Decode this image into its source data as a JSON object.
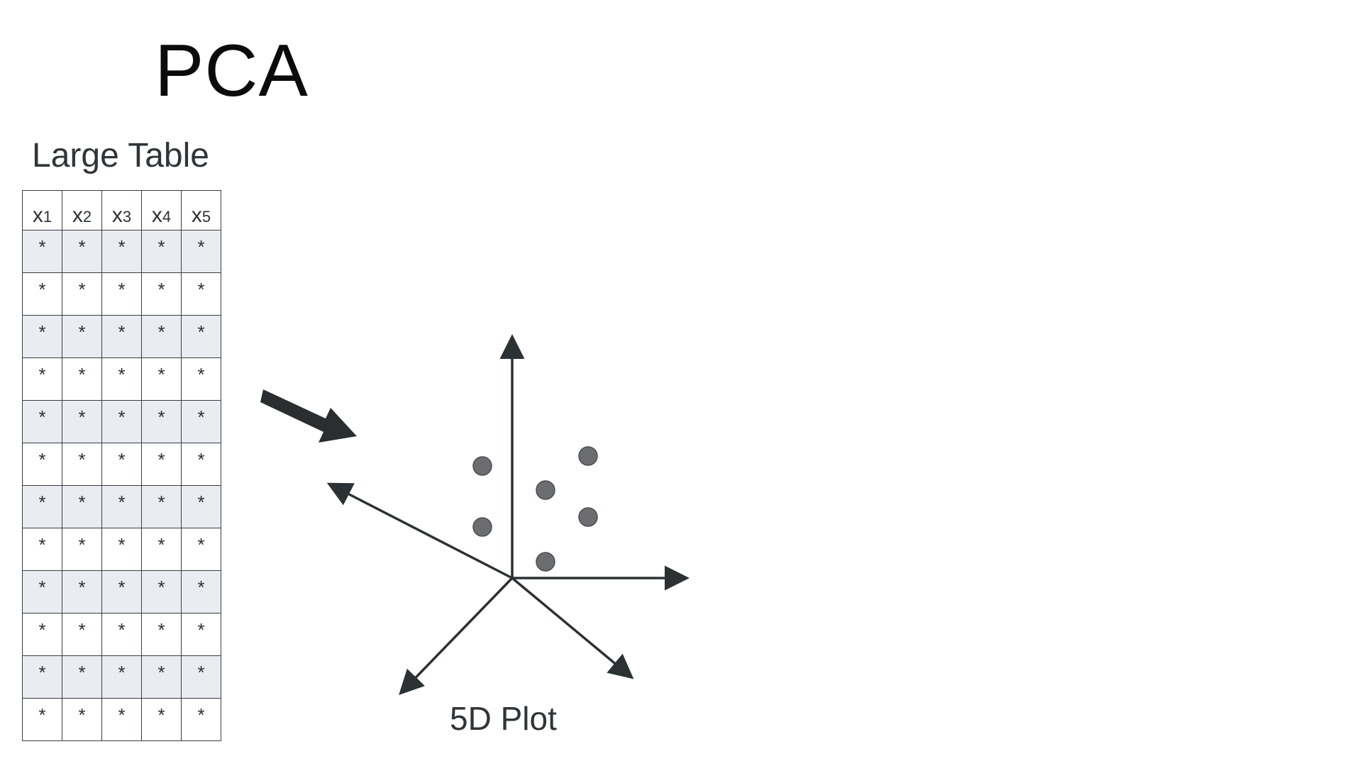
{
  "title": "PCA",
  "table": {
    "caption": "Large Table",
    "columns": [
      {
        "letter": "x",
        "sub": "1"
      },
      {
        "letter": "x",
        "sub": "2"
      },
      {
        "letter": "x",
        "sub": "3"
      },
      {
        "letter": "x",
        "sub": "4"
      },
      {
        "letter": "x",
        "sub": "5"
      }
    ],
    "row_count": 12,
    "cell_value": "*"
  },
  "plot": {
    "caption": "5D Plot",
    "axis_color": "#2c3134",
    "point_color": "#6b6d70",
    "point_count": 6
  },
  "arrow": {
    "icon": "arrow-right-down-icon",
    "color": "#2a2e31"
  }
}
